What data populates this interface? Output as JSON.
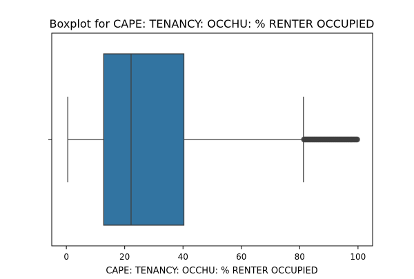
{
  "chart_data": {
    "type": "boxplot",
    "orientation": "horizontal",
    "title": "Boxplot for CAPE: TENANCY: OCCHU: % RENTER OCCUPIED",
    "xlabel": "CAPE: TENANCY: OCCHU: % RENTER OCCUPIED",
    "ylabel": "",
    "xlim": [
      -5,
      105
    ],
    "xticks": [
      0,
      20,
      40,
      60,
      80,
      100
    ],
    "grid": false,
    "stats": {
      "whisker_low": 0.5,
      "q1": 12.8,
      "median": 22.2,
      "q3": 40.3,
      "whisker_high": 81.3
    },
    "outlier_range": [
      81.3,
      100
    ],
    "colors": {
      "box_fill": "#3274a1",
      "lines": "#3f3f3f",
      "outliers": "#3f3f3f"
    }
  }
}
